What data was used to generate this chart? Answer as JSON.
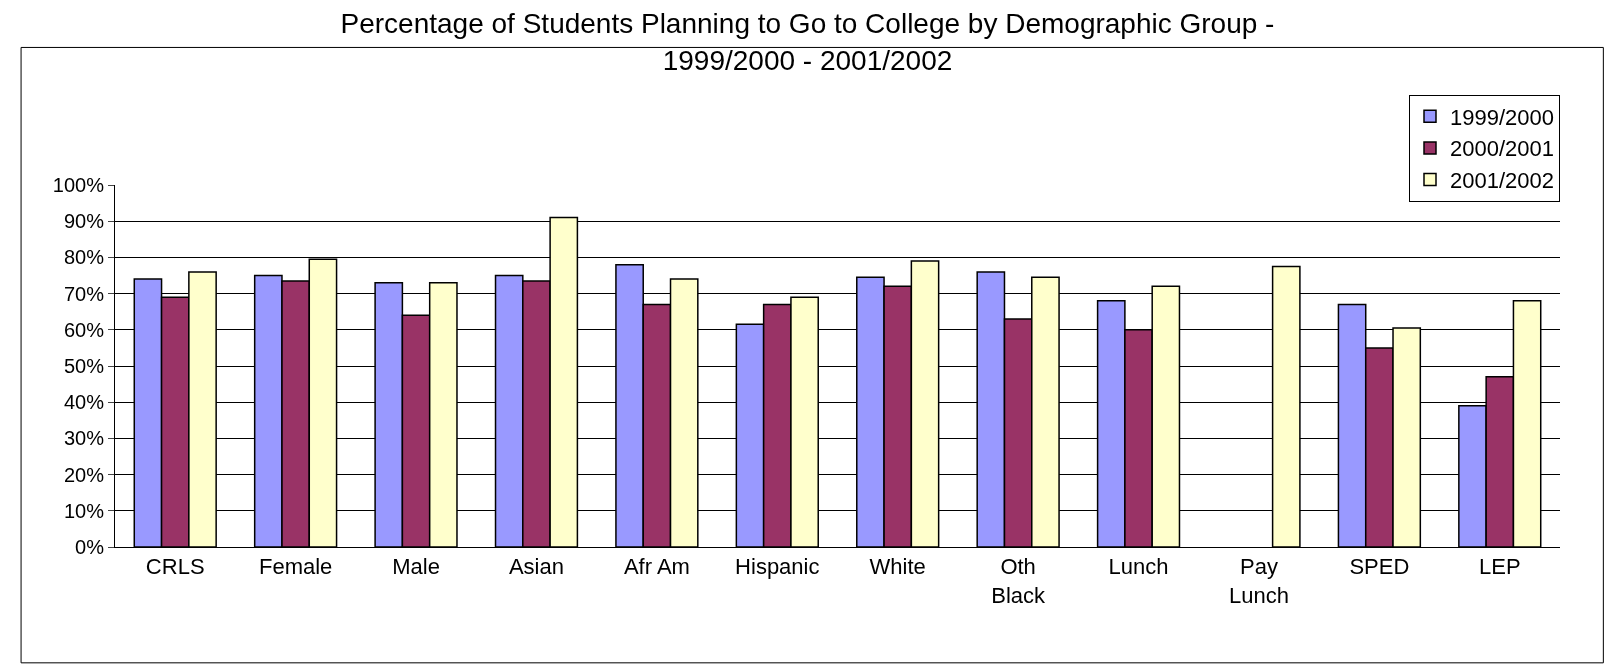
{
  "chart_data": {
    "type": "bar",
    "title": "Percentage of Students Planning to Go to College by Demographic Group -\n1999/2000 - 2001/2002",
    "categories": [
      "CRLS",
      "Female",
      "Male",
      "Asian",
      "Afr Am",
      "Hispanic",
      "White",
      "Oth\nBlack",
      "Lunch",
      "Pay\nLunch",
      "SPED",
      "LEP"
    ],
    "series": [
      {
        "name": "1999/2000",
        "color": "#9999ff",
        "values": [
          74,
          75,
          73,
          75,
          78,
          61.5,
          74.5,
          76,
          68,
          null,
          67,
          39
        ]
      },
      {
        "name": "2000/2001",
        "color": "#993366",
        "values": [
          69,
          73.5,
          64,
          73.5,
          67,
          67,
          72,
          63,
          60,
          null,
          55,
          47
        ]
      },
      {
        "name": "2001/2002",
        "color": "#ffffcc",
        "values": [
          76,
          79.5,
          73,
          91,
          74,
          69,
          79,
          74.5,
          72,
          77.5,
          60.5,
          68
        ]
      }
    ],
    "ylim": [
      0,
      100
    ],
    "yticks": [
      {
        "value": 0,
        "label": "0%"
      },
      {
        "value": 10,
        "label": "10%"
      },
      {
        "value": 20,
        "label": "20%"
      },
      {
        "value": 30,
        "label": "30%"
      },
      {
        "value": 40,
        "label": "40%"
      },
      {
        "value": 50,
        "label": "50%"
      },
      {
        "value": 60,
        "label": "60%"
      },
      {
        "value": 70,
        "label": "70%"
      },
      {
        "value": 80,
        "label": "80%"
      },
      {
        "value": 90,
        "label": "90%"
      },
      {
        "value": 100,
        "label": "100%"
      }
    ],
    "grid": "y",
    "legend": "top right"
  }
}
